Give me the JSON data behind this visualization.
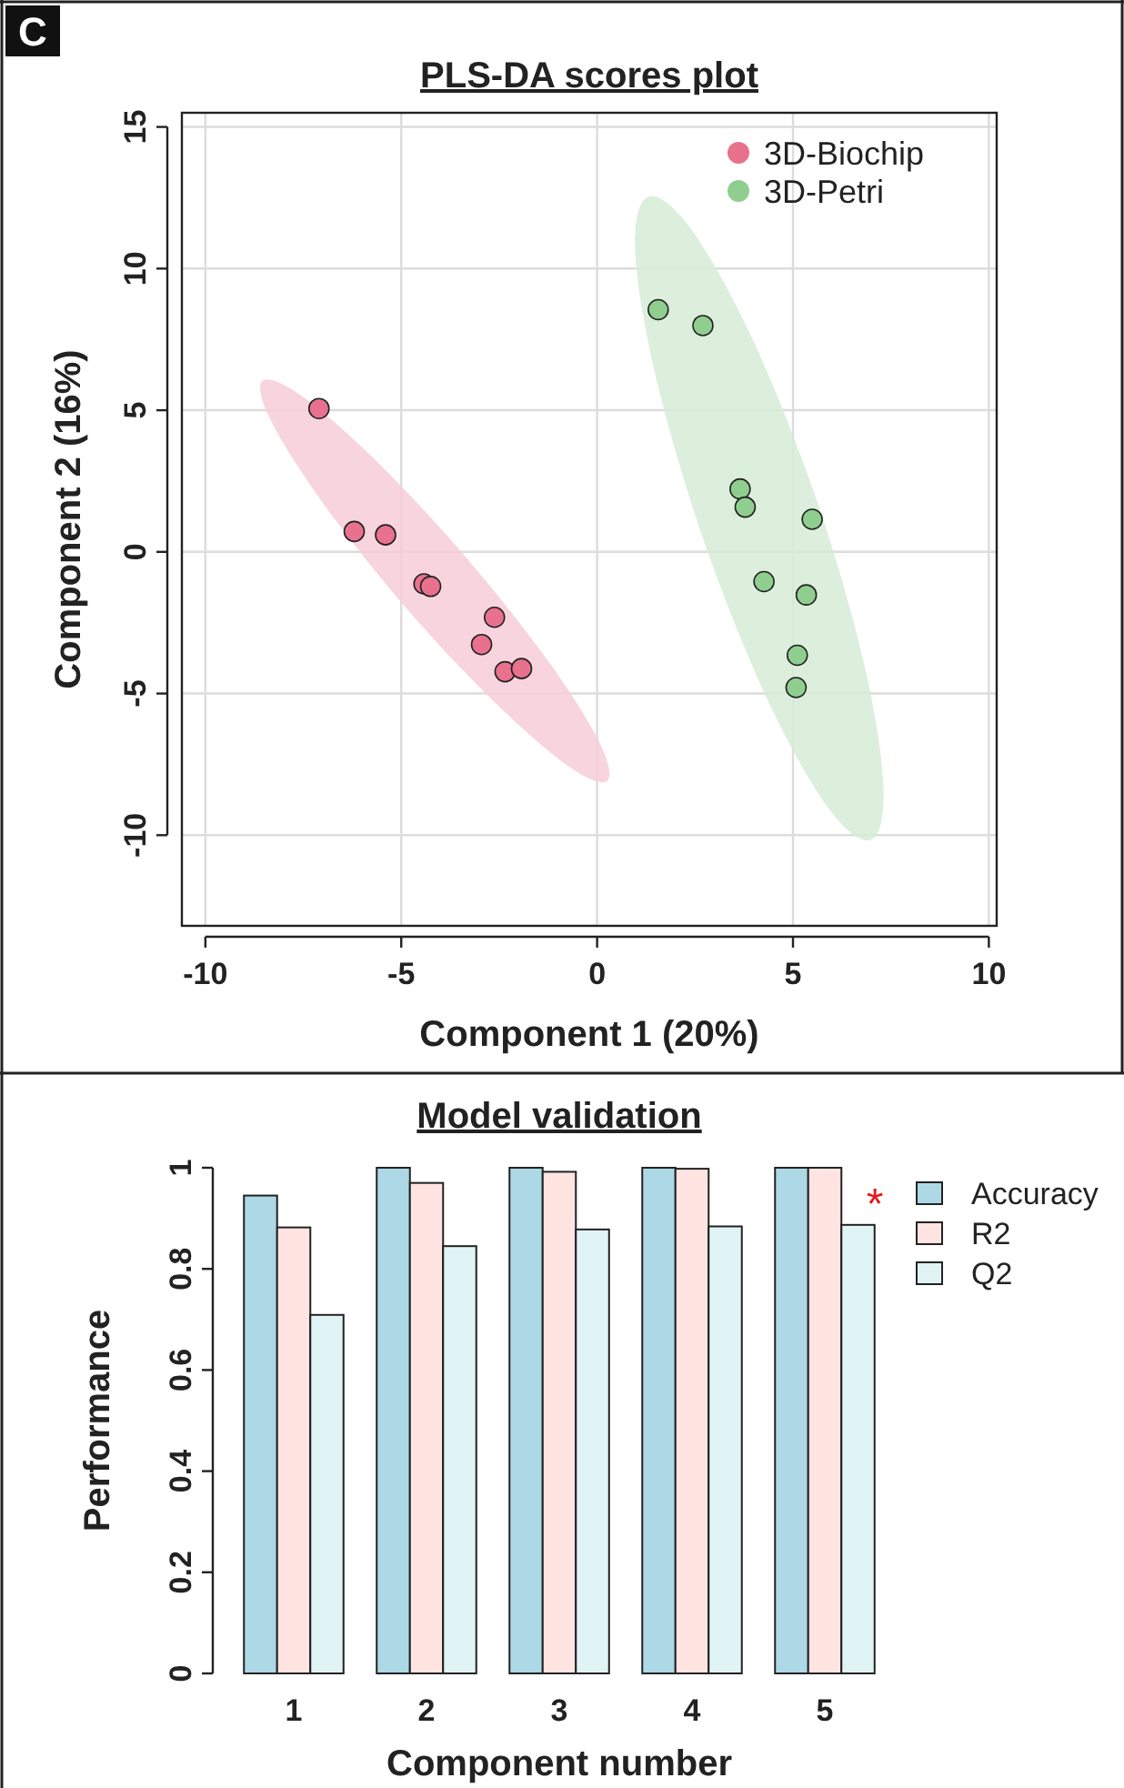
{
  "chart_data": [
    {
      "type": "scatter",
      "title": "PLS-DA scores plot",
      "xlabel": "Component 1 (20%)",
      "ylabel": "Component 2 (16%)",
      "xlim": [
        -10.6,
        10.2
      ],
      "xticks": [
        -10,
        -5,
        0,
        5,
        10
      ],
      "ylim": [
        -13.2,
        15.5
      ],
      "yticks": [
        -10,
        -5,
        0,
        5,
        10,
        15
      ],
      "grid": true,
      "legend": "top right",
      "marker": "circle",
      "annotations": [
        "C"
      ],
      "series": [
        {
          "type": "area",
          "marker": "none",
          "color": "#f7cdd8",
          "x": [
            0.26,
            -0.7,
            -2.57,
            -4.88,
            -6.98,
            -8.32,
            -8.55,
            -7.59,
            -5.71,
            -3.41,
            -1.31,
            0.04
          ],
          "values": [
            -8.08,
            -7.6,
            -5.37,
            -1.97,
            1.69,
            4.62,
            6.03,
            5.55,
            3.31,
            -0.09,
            -3.74,
            -6.67
          ]
        },
        {
          "type": "area",
          "marker": "none",
          "color": "#d6ebd6",
          "x": [
            6.98,
            5.89,
            4.32,
            2.71,
            1.49,
            0.97,
            1.31,
            2.4,
            3.97,
            5.58,
            6.8,
            7.31
          ],
          "values": [
            -10.17,
            -9.02,
            -5.13,
            0.45,
            6.24,
            10.66,
            12.54,
            11.39,
            7.5,
            1.92,
            -3.86,
            -8.29
          ]
        },
        {
          "name": "3D-Biochip",
          "color": "#e8718d",
          "x": [
            -7.1,
            -6.2,
            -5.4,
            -4.42,
            -4.25,
            -2.62,
            -2.95,
            -2.35,
            -1.93
          ],
          "values": [
            5.06,
            0.72,
            0.6,
            -1.13,
            -1.22,
            -2.31,
            -3.27,
            -4.23,
            -4.12
          ]
        },
        {
          "name": "3D-Petri",
          "color": "#8fce8f",
          "x": [
            1.56,
            2.7,
            3.65,
            3.78,
            5.49,
            4.26,
            5.34,
            5.11,
            5.08
          ],
          "values": [
            8.55,
            7.99,
            2.22,
            1.58,
            1.15,
            -1.05,
            -1.52,
            -3.65,
            -4.79
          ]
        }
      ]
    },
    {
      "type": "bar",
      "title": "Model validation",
      "xlabel": "Component number",
      "ylabel": "Performance",
      "categories": [
        "1",
        "2",
        "3",
        "4",
        "5"
      ],
      "ylim": [
        0,
        1
      ],
      "yticks": [
        0,
        0.2,
        0.4,
        0.6,
        0.8,
        1
      ],
      "legend": "right",
      "annotations": [
        "*"
      ],
      "series": [
        {
          "name": "Accuracy",
          "color": "#add8e6",
          "values": [
            0.945,
            1,
            1,
            1,
            1
          ]
        },
        {
          "name": "R2",
          "color": "#ffe4e1",
          "values": [
            0.882,
            0.97,
            0.992,
            0.998,
            1
          ]
        },
        {
          "name": "Q2",
          "color": "#e0f3f5",
          "values": [
            0.709,
            0.845,
            0.878,
            0.884,
            0.887
          ]
        }
      ]
    }
  ]
}
